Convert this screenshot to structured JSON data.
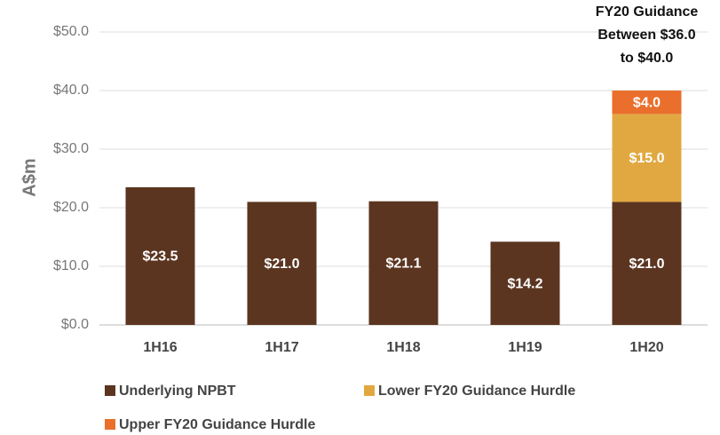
{
  "chart_data": {
    "type": "bar",
    "stacked": true,
    "y_label": "A$m",
    "annotation": [
      "FY20 Guidance",
      "Between $36.0",
      "to $40.0"
    ],
    "categories": [
      "1H16",
      "1H17",
      "1H18",
      "1H19",
      "1H20"
    ],
    "series": [
      {
        "name": "Underlying NPBT",
        "color": "#5b3520",
        "values": [
          23.5,
          21.0,
          21.1,
          14.2,
          21.0
        ],
        "value_labels": [
          "$23.5",
          "$21.0",
          "$21.1",
          "$14.2",
          "$21.0"
        ]
      },
      {
        "name": "Lower FY20 Guidance Hurdle",
        "color": "#e1a841",
        "values": [
          null,
          null,
          null,
          null,
          15.0
        ],
        "value_labels": [
          null,
          null,
          null,
          null,
          "$15.0"
        ]
      },
      {
        "name": "Upper FY20 Guidance Hurdle",
        "color": "#ea6f2c",
        "values": [
          null,
          null,
          null,
          null,
          4.0
        ],
        "value_labels": [
          null,
          null,
          null,
          null,
          "$4.0"
        ]
      }
    ],
    "ylim": [
      0,
      50
    ],
    "yticks": [
      {
        "value": 0,
        "label": "$0.0"
      },
      {
        "value": 10,
        "label": "$10.0"
      },
      {
        "value": 20,
        "label": "$20.0"
      },
      {
        "value": 30,
        "label": "$30.0"
      },
      {
        "value": 40,
        "label": "$40.0"
      },
      {
        "value": 50,
        "label": "$50.0"
      }
    ],
    "grid": true,
    "legend": "bottom"
  }
}
